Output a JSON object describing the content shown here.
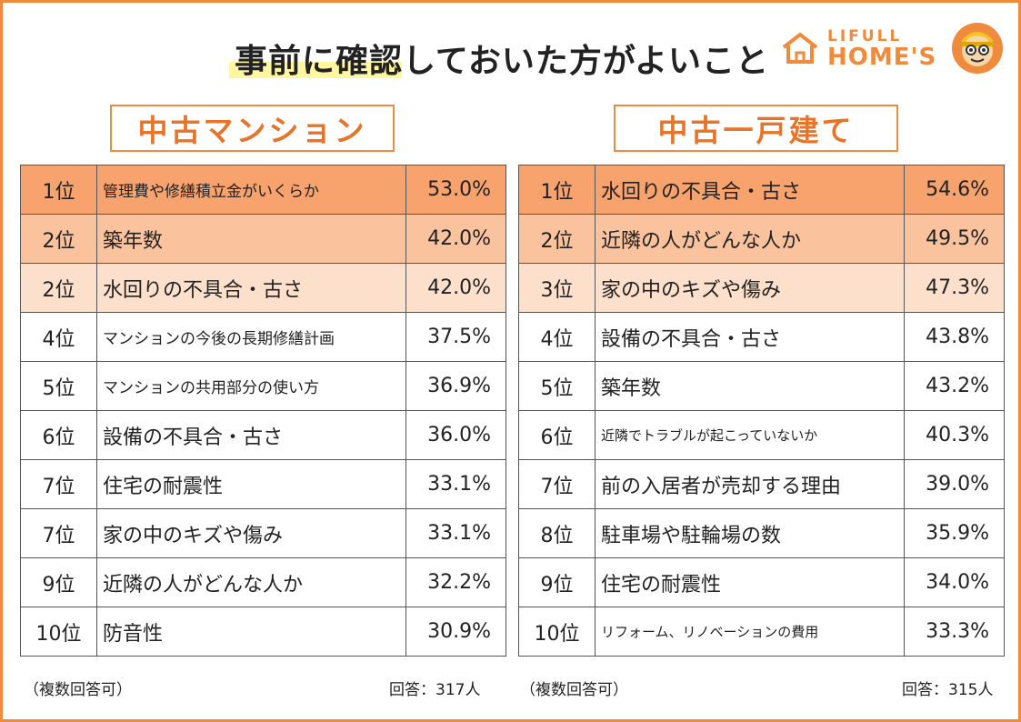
{
  "title": "事前に確認しておいた方がよいこと",
  "logo": {
    "line1": "LIFULL",
    "line2": "HOME'S"
  },
  "colors": {
    "accent": "#f08a3c",
    "rank1": "#f8a36d",
    "rank2": "#fbc39d",
    "rank3": "#fde0cc"
  },
  "chart_data": [
    {
      "type": "table",
      "title": "中古マンション",
      "rows": [
        {
          "rank": "1位",
          "item": "管理費や修繕積立金がいくらか",
          "value": "53.0%"
        },
        {
          "rank": "2位",
          "item": "築年数",
          "value": "42.0%"
        },
        {
          "rank": "2位",
          "item": "水回りの不具合・古さ",
          "value": "42.0%"
        },
        {
          "rank": "4位",
          "item": "マンションの今後の長期修繕計画",
          "value": "37.5%"
        },
        {
          "rank": "5位",
          "item": "マンションの共用部分の使い方",
          "value": "36.9%"
        },
        {
          "rank": "6位",
          "item": "設備の不具合・古さ",
          "value": "36.0%"
        },
        {
          "rank": "7位",
          "item": "住宅の耐震性",
          "value": "33.1%"
        },
        {
          "rank": "7位",
          "item": "家の中のキズや傷み",
          "value": "33.1%"
        },
        {
          "rank": "9位",
          "item": "近隣の人がどんな人か",
          "value": "32.2%"
        },
        {
          "rank": "10位",
          "item": "防音性",
          "value": "30.9%"
        }
      ],
      "note": "（複数回答可）",
      "respondents": "回答：317人"
    },
    {
      "type": "table",
      "title": "中古一戸建て",
      "rows": [
        {
          "rank": "1位",
          "item": "水回りの不具合・古さ",
          "value": "54.6%"
        },
        {
          "rank": "2位",
          "item": "近隣の人がどんな人か",
          "value": "49.5%"
        },
        {
          "rank": "3位",
          "item": "家の中のキズや傷み",
          "value": "47.3%"
        },
        {
          "rank": "4位",
          "item": "設備の不具合・古さ",
          "value": "43.8%"
        },
        {
          "rank": "5位",
          "item": "築年数",
          "value": "43.2%"
        },
        {
          "rank": "6位",
          "item": "近隣でトラブルが起こっていないか",
          "value": "40.3%"
        },
        {
          "rank": "7位",
          "item": "前の入居者が売却する理由",
          "value": "39.0%"
        },
        {
          "rank": "8位",
          "item": "駐車場や駐輪場の数",
          "value": "35.9%"
        },
        {
          "rank": "9位",
          "item": "住宅の耐震性",
          "value": "34.0%"
        },
        {
          "rank": "10位",
          "item": "リフォーム、リノベーションの費用",
          "value": "33.3%"
        }
      ],
      "note": "（複数回答可）",
      "respondents": "回答：315人"
    }
  ]
}
